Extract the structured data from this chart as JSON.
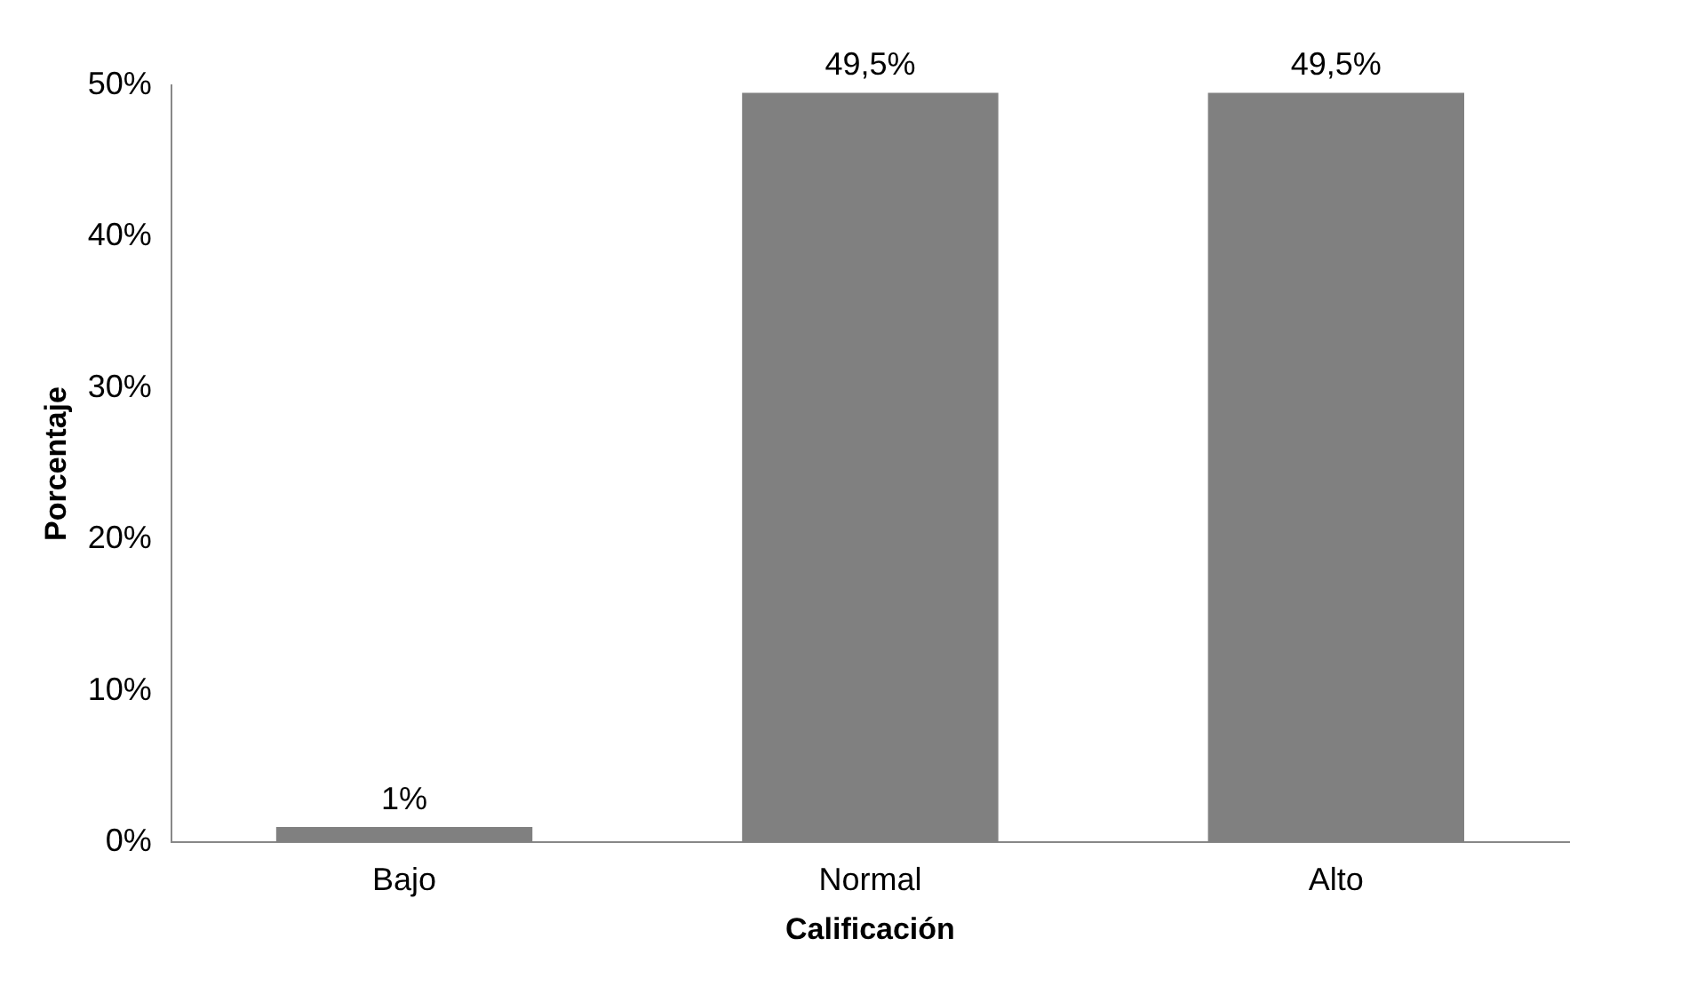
{
  "chart_data": {
    "type": "bar",
    "xlabel": "Calificación",
    "ylabel": "Porcentaje",
    "categories": [
      "Bajo",
      "Normal",
      "Alto"
    ],
    "values": [
      1,
      49.5,
      49.5
    ],
    "value_labels": [
      "1%",
      "49,5%",
      "49,5%"
    ],
    "color": "#808080",
    "ylim": [
      0,
      50
    ],
    "yticks": [
      {
        "value": 0,
        "label": "0%"
      },
      {
        "value": 10,
        "label": "10%"
      },
      {
        "value": 20,
        "label": "20%"
      },
      {
        "value": 30,
        "label": "30%"
      },
      {
        "value": 40,
        "label": "40%"
      },
      {
        "value": 50,
        "label": "50%"
      }
    ],
    "grid": false,
    "legend": false
  }
}
